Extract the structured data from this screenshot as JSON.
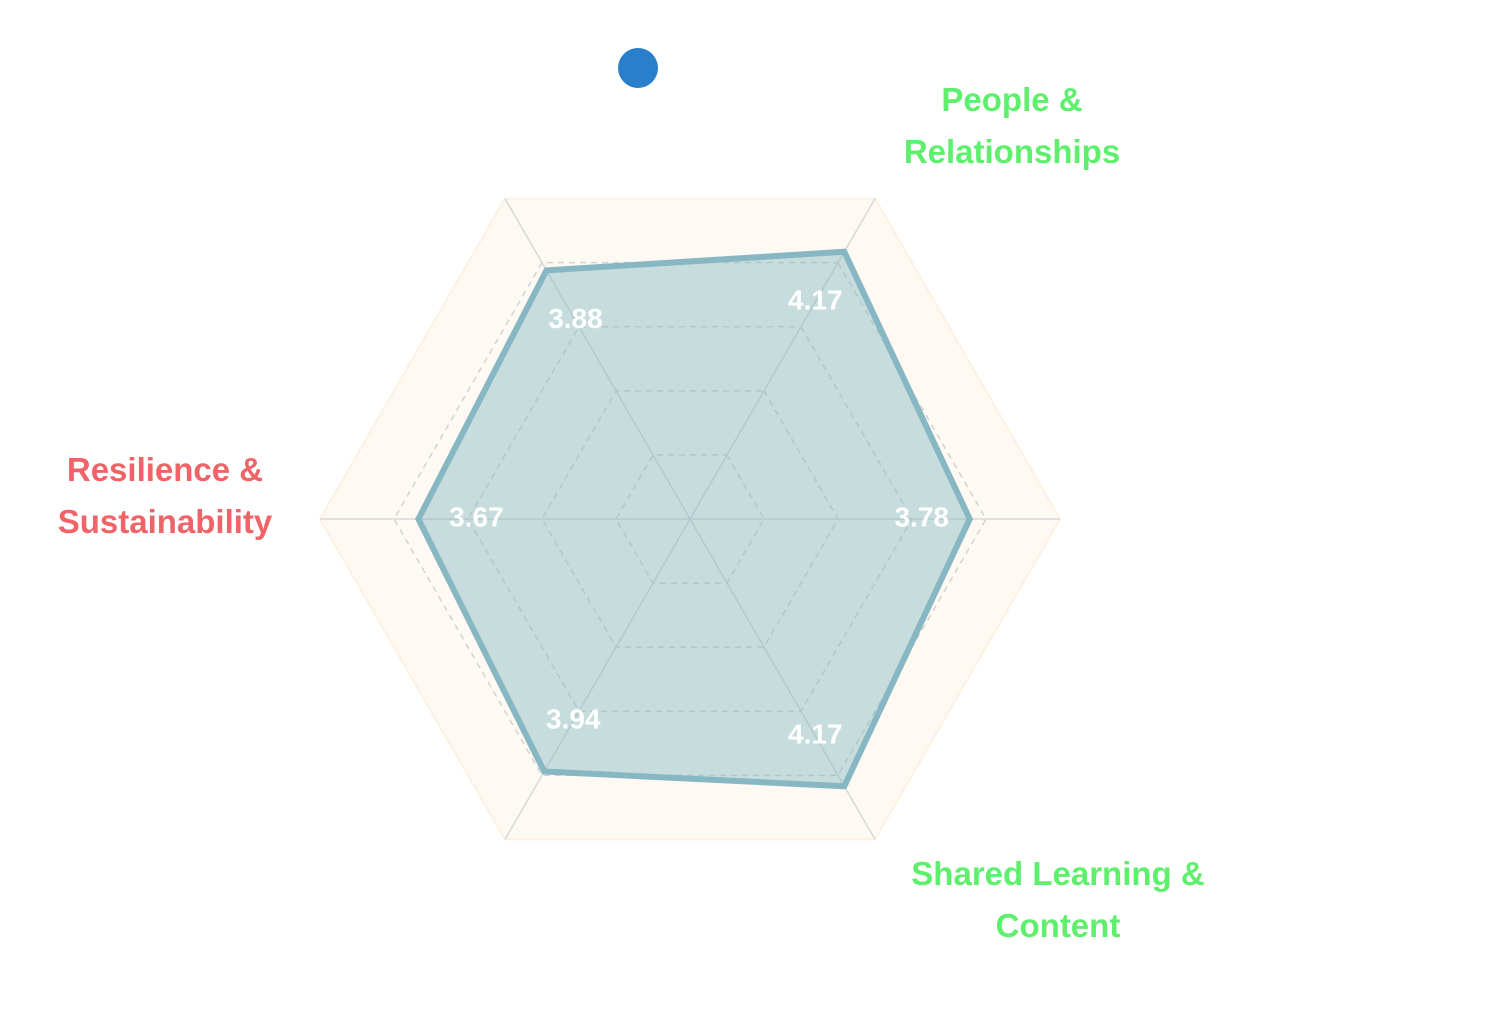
{
  "chart_data": {
    "type": "radar",
    "categories": [
      "People & Relationships",
      null,
      "Shared Learning & Content",
      null,
      "Resilience & Sustainability",
      null
    ],
    "label_colors": [
      "#5ef06c",
      null,
      "#5ef06c",
      null,
      "#ef6468",
      null
    ],
    "series": [
      {
        "color": "#86b7c2",
        "values": [
          4.17,
          3.78,
          4.17,
          3.94,
          3.67,
          3.88
        ]
      }
    ],
    "legend_color": "#2a7fcb",
    "rlim": [
      0,
      5
    ],
    "rticks": [
      1,
      2,
      3,
      4,
      5
    ],
    "grid": true
  }
}
